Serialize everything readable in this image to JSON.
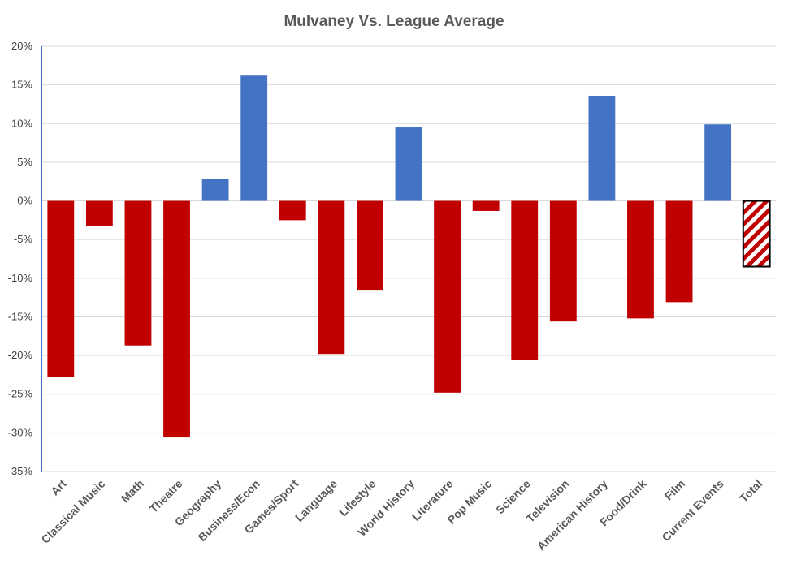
{
  "chart_data": {
    "type": "bar",
    "title": "Mulvaney Vs. League Average",
    "categories": [
      "Art",
      "Classical Music",
      "Math",
      "Theatre",
      "Geography",
      "Business/Econ",
      "Games/Sport",
      "Language",
      "Lifestyle",
      "World History",
      "Literature",
      "Pop Music",
      "Science",
      "Television",
      "American History",
      "Food/Drink",
      "Film",
      "Current Events",
      "Total"
    ],
    "values": [
      -22.8,
      -3.3,
      -18.7,
      -30.6,
      2.8,
      16.2,
      -2.5,
      -19.8,
      -11.5,
      9.5,
      -24.8,
      -1.3,
      -20.6,
      -15.6,
      13.6,
      -15.2,
      -13.1,
      9.9,
      -8.5
    ],
    "ylim": [
      -35,
      20
    ],
    "yticks": [
      20,
      15,
      10,
      5,
      0,
      -5,
      -10,
      -15,
      -20,
      -25,
      -30,
      -35
    ],
    "ytick_labels": [
      "20%",
      "15%",
      "10%",
      "5%",
      "0%",
      "-5%",
      "-10%",
      "-15%",
      "-20%",
      "-25%",
      "-30%",
      "-35%"
    ],
    "xlabel": "",
    "ylabel": "",
    "grid": true,
    "colors": {
      "positive": "#4472c4",
      "negative": "#c00000",
      "total_hatch": "#c00000",
      "axis": "#4472c4",
      "gridline": "#d9d9d9"
    },
    "total_style": "red-white diagonal hatch with black outline"
  }
}
